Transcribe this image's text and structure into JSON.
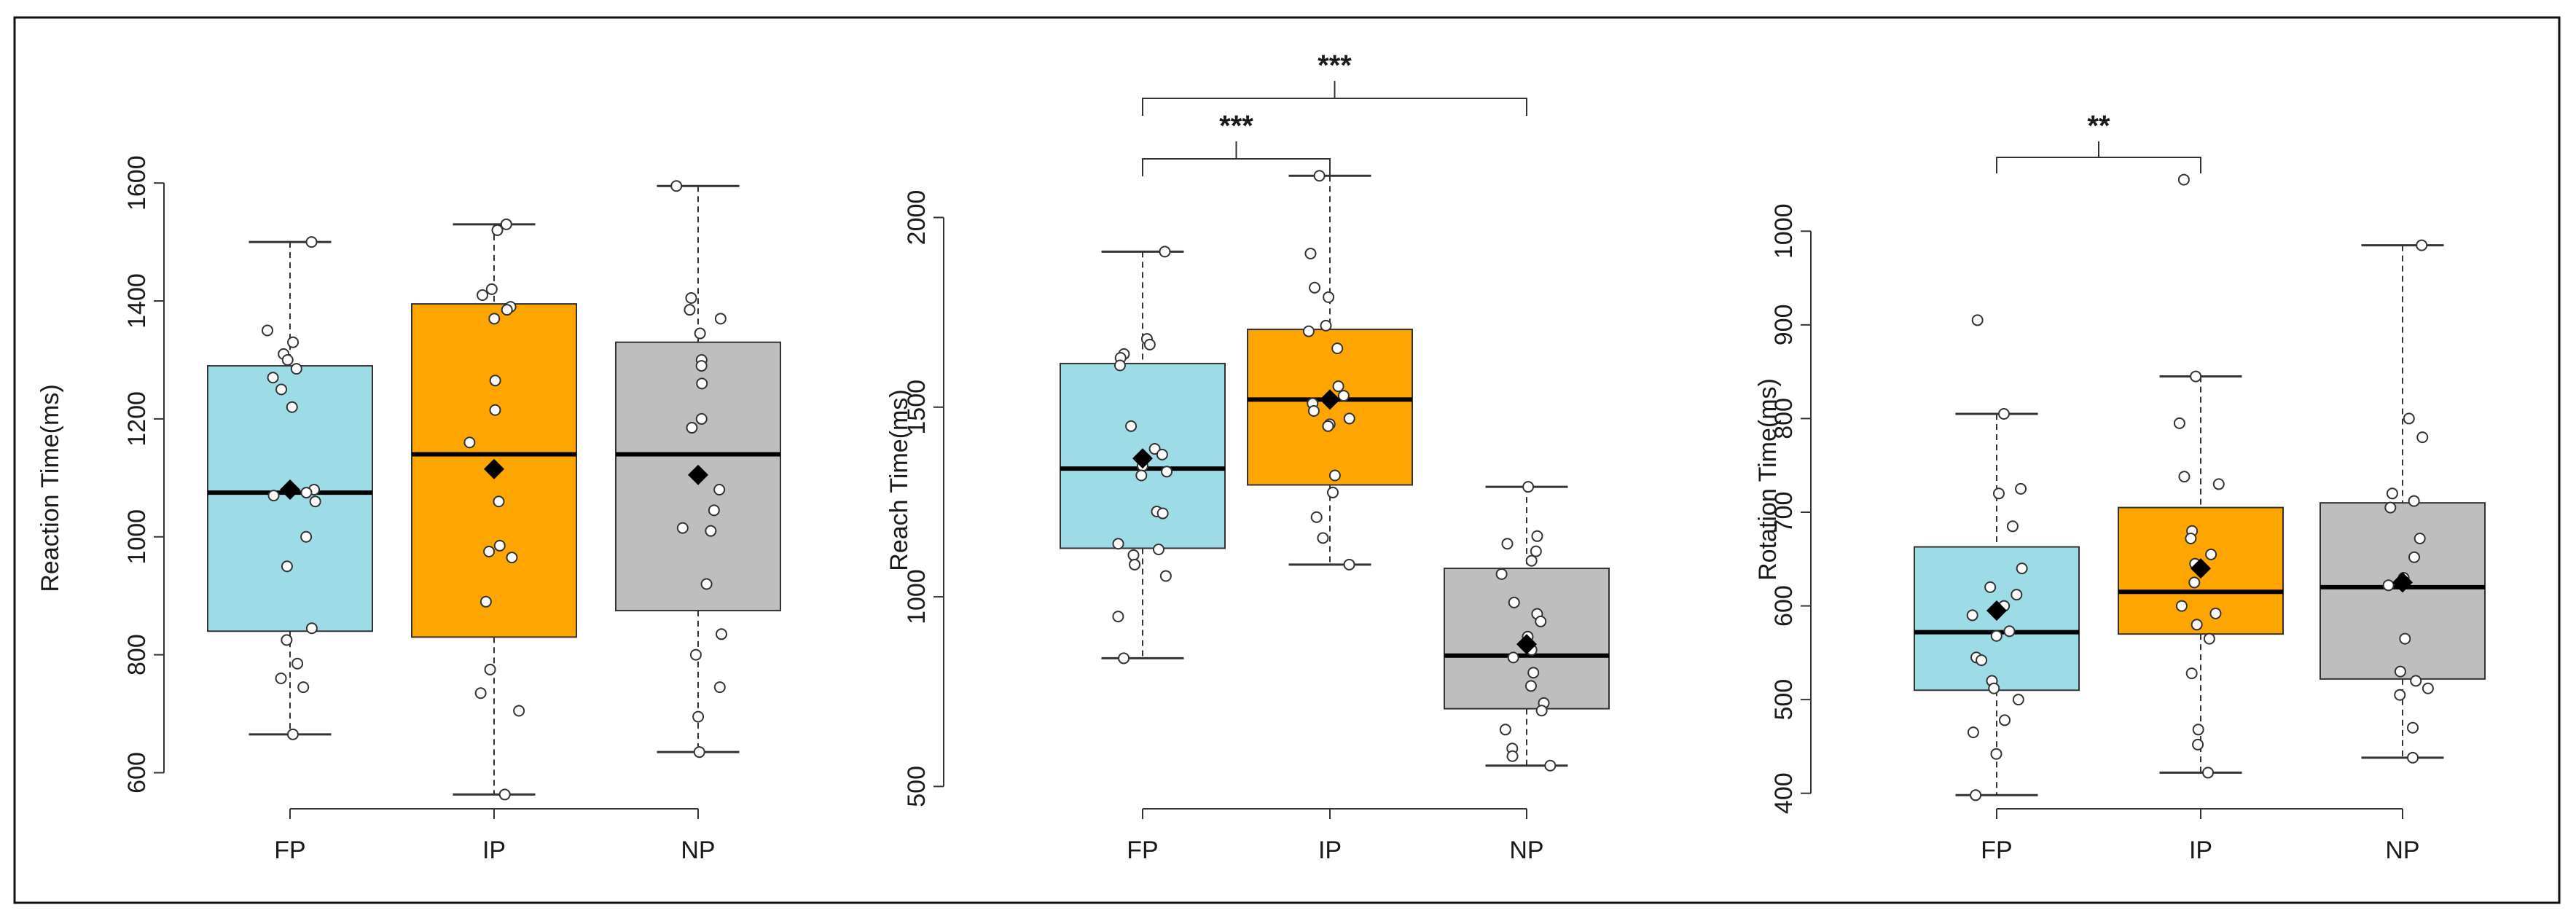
{
  "chart_data": [
    {
      "type": "box",
      "ylabel": "Reaction Time(ms)",
      "categories": [
        "FP",
        "IP",
        "NP"
      ],
      "yticks": [
        600,
        800,
        1000,
        1200,
        1400,
        1600
      ],
      "ylim": [
        545,
        1620
      ],
      "grid": false,
      "boxes": [
        {
          "category": "FP",
          "color": "#9ddbe6",
          "whisker_low": 665,
          "q1": 840,
          "median": 1075,
          "q3": 1290,
          "whisker_high": 1500,
          "mean": 1080,
          "points": [
            1500,
            1350,
            1330,
            1310,
            1300,
            1285,
            1270,
            1250,
            1220,
            1080,
            1075,
            1070,
            1060,
            1000,
            950,
            845,
            825,
            785,
            760,
            745,
            665
          ]
        },
        {
          "category": "IP",
          "color": "#ffa500",
          "whisker_low": 563,
          "q1": 830,
          "median": 1140,
          "q3": 1395,
          "whisker_high": 1530,
          "mean": 1115,
          "points": [
            1530,
            1520,
            1420,
            1410,
            1390,
            1385,
            1370,
            1265,
            1215,
            1160,
            1060,
            985,
            975,
            965,
            890,
            775,
            735,
            705,
            563
          ]
        },
        {
          "category": "NP",
          "color": "#bebebe",
          "whisker_low": 635,
          "q1": 875,
          "median": 1140,
          "q3": 1330,
          "whisker_high": 1595,
          "mean": 1105,
          "points": [
            1595,
            1405,
            1385,
            1370,
            1345,
            1300,
            1290,
            1260,
            1200,
            1185,
            1080,
            1045,
            1015,
            1010,
            920,
            835,
            800,
            745,
            695,
            635
          ]
        }
      ]
    },
    {
      "type": "box",
      "ylabel": "Reach Time(ms)",
      "categories": [
        "FP",
        "IP",
        "NP"
      ],
      "yticks": [
        500,
        1000,
        1500,
        2000
      ],
      "ylim": [
        445,
        2170
      ],
      "grid": false,
      "boxes": [
        {
          "category": "FP",
          "color": "#9ddbe6",
          "whisker_low": 838,
          "q1": 1128,
          "median": 1338,
          "q3": 1615,
          "whisker_high": 1910,
          "mean": 1365,
          "points": [
            1910,
            1680,
            1665,
            1640,
            1630,
            1610,
            1450,
            1390,
            1375,
            1345,
            1330,
            1320,
            1225,
            1220,
            1140,
            1125,
            1110,
            1085,
            1055,
            948,
            838
          ]
        },
        {
          "category": "IP",
          "color": "#ffa500",
          "whisker_low": 1085,
          "q1": 1295,
          "median": 1520,
          "q3": 1705,
          "whisker_high": 2110,
          "mean": 1520,
          "points": [
            2110,
            1905,
            1815,
            1790,
            1715,
            1700,
            1655,
            1555,
            1530,
            1510,
            1490,
            1470,
            1455,
            1450,
            1320,
            1275,
            1210,
            1155,
            1085
          ]
        },
        {
          "category": "NP",
          "color": "#bebebe",
          "whisker_low": 555,
          "q1": 705,
          "median": 845,
          "q3": 1075,
          "whisker_high": 1290,
          "mean": 875,
          "points": [
            1290,
            1160,
            1140,
            1120,
            1095,
            1060,
            985,
            955,
            935,
            895,
            860,
            840,
            800,
            765,
            720,
            700,
            650,
            600,
            580,
            555
          ]
        }
      ],
      "significance": [
        {
          "between": [
            "FP",
            "IP"
          ],
          "label": "***"
        },
        {
          "between": [
            "FP",
            "NP"
          ],
          "label": "***"
        }
      ]
    },
    {
      "type": "box",
      "ylabel": "Rotation Time(ms)",
      "categories": [
        "FP",
        "IP",
        "NP"
      ],
      "yticks": [
        400,
        500,
        600,
        700,
        800,
        900,
        1000
      ],
      "ylim": [
        385,
        1085
      ],
      "grid": false,
      "boxes": [
        {
          "category": "FP",
          "color": "#9ddbe6",
          "whisker_low": 398,
          "q1": 510,
          "median": 572,
          "q3": 663,
          "whisker_high": 805,
          "mean": 595,
          "points": [
            905,
            805,
            725,
            720,
            685,
            640,
            620,
            612,
            600,
            590,
            573,
            568,
            545,
            542,
            520,
            512,
            500,
            478,
            465,
            442,
            398
          ]
        },
        {
          "category": "IP",
          "color": "#ffa500",
          "whisker_low": 422,
          "q1": 570,
          "median": 615,
          "q3": 705,
          "whisker_h igh": 845,
          "whisker_high": 845,
          "mean": 640,
          "points": [
            1055,
            845,
            795,
            738,
            730,
            680,
            672,
            655,
            645,
            625,
            600,
            592,
            580,
            565,
            528,
            468,
            452,
            422
          ]
        },
        {
          "category": "NP",
          "color": "#bebebe",
          "whisker_low": 438,
          "q1": 522,
          "median": 620,
          "q3": 710,
          "whisker_high": 985,
          "mean": 625,
          "points": [
            985,
            800,
            780,
            720,
            712,
            705,
            672,
            652,
            630,
            622,
            565,
            530,
            520,
            512,
            505,
            470,
            438
          ]
        }
      ],
      "significance": [
        {
          "between": [
            "FP",
            "IP"
          ],
          "label": "**"
        }
      ]
    }
  ]
}
